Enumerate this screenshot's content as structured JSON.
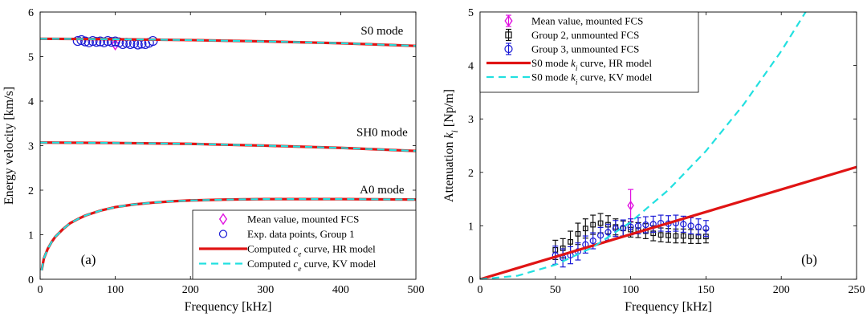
{
  "chart_data": [
    {
      "type": "line",
      "panel_label": "(a)",
      "xlabel": "Frequency [kHz]",
      "ylabel": "Energy velocity [km/s]",
      "xlim": [
        0,
        500
      ],
      "ylim": [
        0,
        6
      ],
      "xticks": [
        "0",
        "100",
        "200",
        "300",
        "400",
        "500"
      ],
      "yticks": [
        "0",
        "1",
        "2",
        "3",
        "4",
        "5",
        "6"
      ],
      "grid": false,
      "legend_position": "bottom-right",
      "annotations": [
        {
          "text": "S0 mode",
          "x": 455,
          "y": 5.5
        },
        {
          "text": "SH0 mode",
          "x": 455,
          "y": 3.22
        },
        {
          "text": "A0 mode",
          "x": 455,
          "y": 1.93
        }
      ],
      "series": [
        {
          "name": "Mean value, mounted FCS",
          "kind": "marker",
          "marker": "diamond",
          "color": "#e010e0",
          "x": [
            100
          ],
          "y": [
            5.27
          ]
        },
        {
          "name": "Exp. data points, Group 1",
          "kind": "marker",
          "marker": "circle",
          "color": "#1a1ad6",
          "x": [
            50,
            55,
            60,
            65,
            70,
            75,
            80,
            85,
            90,
            95,
            100,
            105,
            110,
            115,
            120,
            125,
            130,
            135,
            140,
            145,
            150
          ],
          "y": [
            5.35,
            5.37,
            5.34,
            5.32,
            5.35,
            5.33,
            5.34,
            5.32,
            5.35,
            5.33,
            5.34,
            5.32,
            5.28,
            5.31,
            5.28,
            5.3,
            5.27,
            5.29,
            5.28,
            5.31,
            5.35
          ]
        },
        {
          "name_parts": [
            "Computed ",
            "c",
            "e",
            " curve, HR model"
          ],
          "kind": "line",
          "color": "#e01414",
          "curves": [
            {
              "x": [
                0,
                100,
                200,
                300,
                400,
                500
              ],
              "y": [
                5.4,
                5.39,
                5.37,
                5.34,
                5.3,
                5.24
              ]
            },
            {
              "x": [
                0,
                100,
                200,
                300,
                400,
                500
              ],
              "y": [
                3.07,
                3.06,
                3.04,
                3.0,
                2.95,
                2.88
              ]
            },
            {
              "x": [
                2,
                5,
                10,
                15,
                20,
                30,
                40,
                50,
                60,
                80,
                100,
                125,
                150,
                175,
                200,
                250,
                300,
                400,
                500
              ],
              "y": [
                0.2,
                0.47,
                0.68,
                0.83,
                0.95,
                1.12,
                1.26,
                1.35,
                1.43,
                1.54,
                1.62,
                1.68,
                1.72,
                1.75,
                1.77,
                1.79,
                1.8,
                1.8,
                1.79
              ]
            }
          ]
        },
        {
          "name_parts": [
            "Computed ",
            "c",
            "e",
            " curve, KV model"
          ],
          "kind": "line",
          "dashed": true,
          "color": "#22e0e0",
          "curves": [
            {
              "x": [
                0,
                100,
                200,
                300,
                400,
                500
              ],
              "y": [
                5.4,
                5.39,
                5.37,
                5.34,
                5.3,
                5.24
              ]
            },
            {
              "x": [
                0,
                100,
                200,
                300,
                400,
                500
              ],
              "y": [
                3.07,
                3.06,
                3.04,
                3.0,
                2.95,
                2.88
              ]
            },
            {
              "x": [
                2,
                5,
                10,
                15,
                20,
                30,
                40,
                50,
                60,
                80,
                100,
                125,
                150,
                175,
                200,
                250,
                300,
                400,
                500
              ],
              "y": [
                0.2,
                0.47,
                0.68,
                0.83,
                0.95,
                1.12,
                1.26,
                1.35,
                1.43,
                1.54,
                1.62,
                1.68,
                1.72,
                1.75,
                1.77,
                1.79,
                1.8,
                1.8,
                1.79
              ]
            }
          ]
        }
      ]
    },
    {
      "type": "line",
      "panel_label": "(b)",
      "xlabel": "Frequency [kHz]",
      "ylabel_parts": [
        "Attenuation ",
        "k",
        "i",
        " [Np/m]"
      ],
      "xlim": [
        0,
        250
      ],
      "ylim": [
        0,
        5
      ],
      "xticks": [
        "0",
        "50",
        "100",
        "150",
        "200",
        "250"
      ],
      "yticks": [
        "0",
        "1",
        "2",
        "3",
        "4",
        "5"
      ],
      "grid": false,
      "legend_position": "top-left",
      "series": [
        {
          "name": "Mean value, mounted FCS",
          "kind": "errorbar",
          "marker": "diamond",
          "color": "#e010e0",
          "x": [
            100
          ],
          "y": [
            1.38
          ],
          "err": [
            0.3
          ]
        },
        {
          "name": "Group 2, unmounted FCS",
          "kind": "errorbar",
          "marker": "square",
          "color": "#111111",
          "x": [
            50,
            55,
            60,
            65,
            70,
            75,
            80,
            85,
            90,
            95,
            100,
            105,
            110,
            115,
            120,
            125,
            130,
            135,
            140,
            145,
            150
          ],
          "y": [
            0.55,
            0.58,
            0.7,
            0.85,
            0.95,
            1.02,
            1.05,
            1.02,
            0.98,
            0.95,
            0.93,
            0.92,
            0.9,
            0.86,
            0.83,
            0.82,
            0.81,
            0.81,
            0.8,
            0.8,
            0.8
          ],
          "err": [
            0.18,
            0.18,
            0.2,
            0.2,
            0.18,
            0.18,
            0.18,
            0.17,
            0.15,
            0.14,
            0.14,
            0.14,
            0.14,
            0.14,
            0.13,
            0.13,
            0.13,
            0.13,
            0.13,
            0.13,
            0.12
          ]
        },
        {
          "name": "Group 3, unmounted FCS",
          "kind": "errorbar",
          "marker": "circle",
          "color": "#1a1ad6",
          "x": [
            50,
            55,
            60,
            65,
            70,
            75,
            80,
            85,
            90,
            95,
            100,
            105,
            110,
            115,
            120,
            125,
            130,
            135,
            140,
            145,
            150
          ],
          "y": [
            0.45,
            0.4,
            0.45,
            0.52,
            0.65,
            0.72,
            0.82,
            0.88,
            0.95,
            0.96,
            0.98,
            1.0,
            1.02,
            1.03,
            1.05,
            1.04,
            1.05,
            1.03,
            1.0,
            0.98,
            0.95
          ],
          "err": [
            0.17,
            0.17,
            0.16,
            0.16,
            0.16,
            0.15,
            0.15,
            0.15,
            0.15,
            0.15,
            0.15,
            0.15,
            0.15,
            0.15,
            0.15,
            0.15,
            0.15,
            0.15,
            0.15,
            0.15,
            0.15
          ]
        },
        {
          "name_parts": [
            "S0 mode ",
            "k",
            "i",
            " curve, HR model"
          ],
          "kind": "line",
          "color": "#e01414",
          "curves": [
            {
              "x": [
                0,
                250
              ],
              "y": [
                0.0,
                2.1
              ]
            }
          ]
        },
        {
          "name_parts": [
            "S0 mode ",
            "k",
            "i",
            " curve, KV model"
          ],
          "kind": "line",
          "dashed": true,
          "color": "#22e0e0",
          "curves": [
            {
              "x": [
                0,
                25,
                50,
                75,
                100,
                125,
                150,
                175,
                200,
                225,
                250
              ],
              "y": [
                0.0,
                0.067,
                0.27,
                0.6,
                1.07,
                1.67,
                2.4,
                3.27,
                4.27,
                5.4,
                6.67
              ]
            }
          ]
        }
      ]
    }
  ]
}
